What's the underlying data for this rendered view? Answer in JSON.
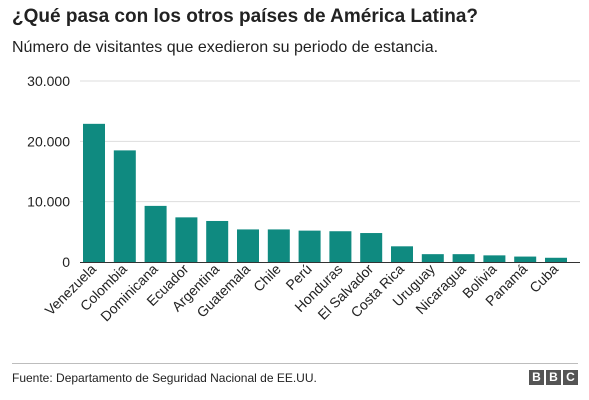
{
  "header": {
    "title": "¿Qué pasa con los otros países de América Latina?",
    "subtitle": "Número de visitantes que exedieron su periodo de estancia."
  },
  "footer": {
    "source": "Fuente: Departamento de Seguridad Nacional de EE.UU.",
    "logo_text": "BBC"
  },
  "colors": {
    "bar": "#0f8a80",
    "grid": "#dddddd",
    "axis": "#333333"
  },
  "chart_data": {
    "type": "bar",
    "title": "¿Qué pasa con los otros países de América Latina?",
    "subtitle": "Número de visitantes que exedieron su periodo de estancia.",
    "xlabel": "",
    "ylabel": "",
    "ylim": [
      0,
      30000
    ],
    "yticks": [
      0,
      10000,
      20000,
      30000
    ],
    "ytick_labels": [
      "0",
      "10.000",
      "20.000",
      "30.000"
    ],
    "grid": true,
    "categories": [
      "Venezuela",
      "Colombia",
      "Dominicana",
      "Ecuador",
      "Argentina",
      "Guatemala",
      "Chile",
      "Perú",
      "Honduras",
      "El Salvador",
      "Costa Rica",
      "Uruguay",
      "Nicaragua",
      "Bolivia",
      "Panamá",
      "Cuba"
    ],
    "values": [
      22900,
      18500,
      9300,
      7400,
      6800,
      5400,
      5400,
      5200,
      5100,
      4800,
      2600,
      1300,
      1300,
      1100,
      900,
      700
    ]
  }
}
